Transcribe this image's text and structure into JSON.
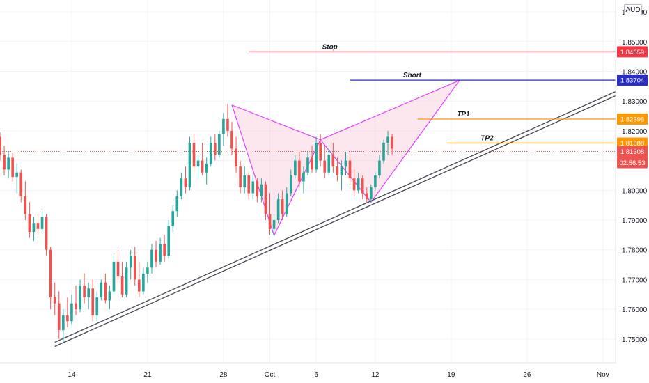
{
  "currency_label": "AUD",
  "chart_data": {
    "type": "candlestick",
    "y_axis": {
      "min": 1.742,
      "max": 1.864,
      "ticks": [
        "1.86000",
        "1.85000",
        "1.84000",
        "1.83000",
        "1.82000",
        "1.81000",
        "1.80000",
        "1.79000",
        "1.78000",
        "1.77000",
        "1.76000",
        "1.75000"
      ],
      "tick_values": [
        1.86,
        1.85,
        1.84,
        1.83,
        1.82,
        1.81,
        1.8,
        1.79,
        1.78,
        1.77,
        1.76,
        1.75
      ]
    },
    "x_axis": {
      "first_index": 0,
      "last_index": 146,
      "labels": [
        {
          "text": "14",
          "index": 17
        },
        {
          "text": "21",
          "index": 35
        },
        {
          "text": "28",
          "index": 53
        },
        {
          "text": "Oct",
          "index": 64
        },
        {
          "text": "6",
          "index": 75
        },
        {
          "text": "12",
          "index": 89
        },
        {
          "text": "19",
          "index": 107
        },
        {
          "text": "26",
          "index": 125
        },
        {
          "text": "Nov",
          "index": 143
        }
      ]
    },
    "price_levels": [
      {
        "name": "Stop",
        "value": 1.84659,
        "label": "1.84659",
        "color": "#f23645",
        "start_index": 59
      },
      {
        "name": "Short",
        "value": 1.83704,
        "label": "1.83704",
        "color": "#2a2ec9",
        "start_index": 83
      },
      {
        "name": "TP1",
        "value": 1.82396,
        "label": "1.82396",
        "color": "#ff9800",
        "start_index": 99
      },
      {
        "name": "TP2",
        "value": 1.81588,
        "label": "1.81588",
        "color": "#ff9800",
        "start_index": 106
      }
    ],
    "current_price": {
      "value": 1.81308,
      "label": "1.81308",
      "countdown": "02:56:53",
      "color": "#ef5350"
    },
    "trendline": {
      "start": {
        "index": 13,
        "value": 1.7482
      },
      "end": {
        "index": 146,
        "value": 1.8325
      },
      "color": "#434651"
    },
    "pattern": {
      "name": "bearish bat",
      "points": [
        {
          "index": 55,
          "value": 1.8287
        },
        {
          "index": 65,
          "value": 1.7848
        },
        {
          "index": 76,
          "value": 1.817
        },
        {
          "index": 88,
          "value": 1.796
        },
        {
          "index": 109,
          "value": 1.837
        }
      ],
      "line_color": "#e040fb",
      "fill_color": "#f8bbd0"
    },
    "candles": [
      [
        1.818,
        1.8195,
        1.81,
        1.812
      ],
      [
        1.812,
        1.815,
        1.805,
        1.807
      ],
      [
        1.807,
        1.813,
        1.804,
        1.811
      ],
      [
        1.811,
        1.8125,
        1.803,
        1.8045
      ],
      [
        1.8045,
        1.809,
        1.799,
        1.806
      ],
      [
        1.806,
        1.807,
        1.796,
        1.798
      ],
      [
        1.798,
        1.803,
        1.79,
        1.792
      ],
      [
        1.792,
        1.796,
        1.784,
        1.786
      ],
      [
        1.786,
        1.791,
        1.783,
        1.789
      ],
      [
        1.789,
        1.792,
        1.785,
        1.787
      ],
      [
        1.787,
        1.793,
        1.786,
        1.791
      ],
      [
        1.791,
        1.792,
        1.778,
        1.78
      ],
      [
        1.78,
        1.781,
        1.76,
        1.764
      ],
      [
        1.764,
        1.769,
        1.758,
        1.762
      ],
      [
        1.762,
        1.766,
        1.75,
        1.753
      ],
      [
        1.753,
        1.76,
        1.749,
        1.758
      ],
      [
        1.758,
        1.764,
        1.754,
        1.756
      ],
      [
        1.756,
        1.765,
        1.755,
        1.762
      ],
      [
        1.762,
        1.768,
        1.758,
        1.76
      ],
      [
        1.76,
        1.77,
        1.759,
        1.768
      ],
      [
        1.768,
        1.772,
        1.762,
        1.764
      ],
      [
        1.764,
        1.769,
        1.76,
        1.767
      ],
      [
        1.767,
        1.77,
        1.756,
        1.758
      ],
      [
        1.758,
        1.766,
        1.756,
        1.764
      ],
      [
        1.764,
        1.77,
        1.763,
        1.769
      ],
      [
        1.769,
        1.772,
        1.762,
        1.763
      ],
      [
        1.763,
        1.768,
        1.76,
        1.766
      ],
      [
        1.766,
        1.778,
        1.765,
        1.776
      ],
      [
        1.776,
        1.78,
        1.769,
        1.771
      ],
      [
        1.771,
        1.776,
        1.764,
        1.765
      ],
      [
        1.765,
        1.776,
        1.764,
        1.774
      ],
      [
        1.774,
        1.78,
        1.77,
        1.778
      ],
      [
        1.778,
        1.781,
        1.768,
        1.77
      ],
      [
        1.77,
        1.776,
        1.764,
        1.766
      ],
      [
        1.766,
        1.774,
        1.765,
        1.772
      ],
      [
        1.772,
        1.776,
        1.769,
        1.774
      ],
      [
        1.774,
        1.782,
        1.772,
        1.78
      ],
      [
        1.78,
        1.783,
        1.774,
        1.776
      ],
      [
        1.776,
        1.784,
        1.775,
        1.782
      ],
      [
        1.782,
        1.785,
        1.776,
        1.778
      ],
      [
        1.778,
        1.79,
        1.777,
        1.788
      ],
      [
        1.788,
        1.795,
        1.786,
        1.793
      ],
      [
        1.793,
        1.8,
        1.791,
        1.798
      ],
      [
        1.798,
        1.806,
        1.797,
        1.804
      ],
      [
        1.804,
        1.808,
        1.799,
        1.801
      ],
      [
        1.801,
        1.818,
        1.8,
        1.816
      ],
      [
        1.816,
        1.819,
        1.806,
        1.808
      ],
      [
        1.808,
        1.812,
        1.804,
        1.81
      ],
      [
        1.81,
        1.816,
        1.805,
        1.806
      ],
      [
        1.806,
        1.811,
        1.802,
        1.809
      ],
      [
        1.809,
        1.818,
        1.808,
        1.816
      ],
      [
        1.816,
        1.819,
        1.81,
        1.812
      ],
      [
        1.812,
        1.82,
        1.811,
        1.819
      ],
      [
        1.819,
        1.826,
        1.815,
        1.824
      ],
      [
        1.824,
        1.829,
        1.818,
        1.82
      ],
      [
        1.82,
        1.823,
        1.812,
        1.814
      ],
      [
        1.814,
        1.818,
        1.806,
        1.808
      ],
      [
        1.808,
        1.81,
        1.799,
        1.801
      ],
      [
        1.801,
        1.808,
        1.799,
        1.805
      ],
      [
        1.805,
        1.806,
        1.797,
        1.799
      ],
      [
        1.799,
        1.805,
        1.797,
        1.803
      ],
      [
        1.803,
        1.804,
        1.796,
        1.798
      ],
      [
        1.798,
        1.804,
        1.796,
        1.802
      ],
      [
        1.802,
        1.803,
        1.79,
        1.792
      ],
      [
        1.792,
        1.799,
        1.785,
        1.787
      ],
      [
        1.787,
        1.792,
        1.784,
        1.79
      ],
      [
        1.79,
        1.799,
        1.789,
        1.797
      ],
      [
        1.797,
        1.8,
        1.79,
        1.792
      ],
      [
        1.792,
        1.801,
        1.791,
        1.799
      ],
      [
        1.799,
        1.807,
        1.798,
        1.805
      ],
      [
        1.805,
        1.812,
        1.804,
        1.81
      ],
      [
        1.81,
        1.813,
        1.801,
        1.803
      ],
      [
        1.803,
        1.808,
        1.799,
        1.806
      ],
      [
        1.806,
        1.813,
        1.805,
        1.811
      ],
      [
        1.811,
        1.815,
        1.806,
        1.807
      ],
      [
        1.807,
        1.818,
        1.806,
        1.816
      ],
      [
        1.816,
        1.819,
        1.808,
        1.81
      ],
      [
        1.81,
        1.815,
        1.804,
        1.806
      ],
      [
        1.806,
        1.814,
        1.805,
        1.812
      ],
      [
        1.812,
        1.816,
        1.806,
        1.808
      ],
      [
        1.808,
        1.811,
        1.803,
        1.805
      ],
      [
        1.805,
        1.81,
        1.8,
        1.808
      ],
      [
        1.808,
        1.813,
        1.805,
        1.81
      ],
      [
        1.81,
        1.812,
        1.802,
        1.804
      ],
      [
        1.804,
        1.807,
        1.798,
        1.8
      ],
      [
        1.8,
        1.806,
        1.799,
        1.804
      ],
      [
        1.804,
        1.805,
        1.797,
        1.799
      ],
      [
        1.799,
        1.801,
        1.796,
        1.797
      ],
      [
        1.797,
        1.802,
        1.796,
        1.801
      ],
      [
        1.801,
        1.806,
        1.8,
        1.805
      ],
      [
        1.805,
        1.812,
        1.804,
        1.81
      ],
      [
        1.81,
        1.817,
        1.809,
        1.816
      ],
      [
        1.816,
        1.82,
        1.812,
        1.818
      ],
      [
        1.818,
        1.819,
        1.812,
        1.814
      ]
    ]
  }
}
